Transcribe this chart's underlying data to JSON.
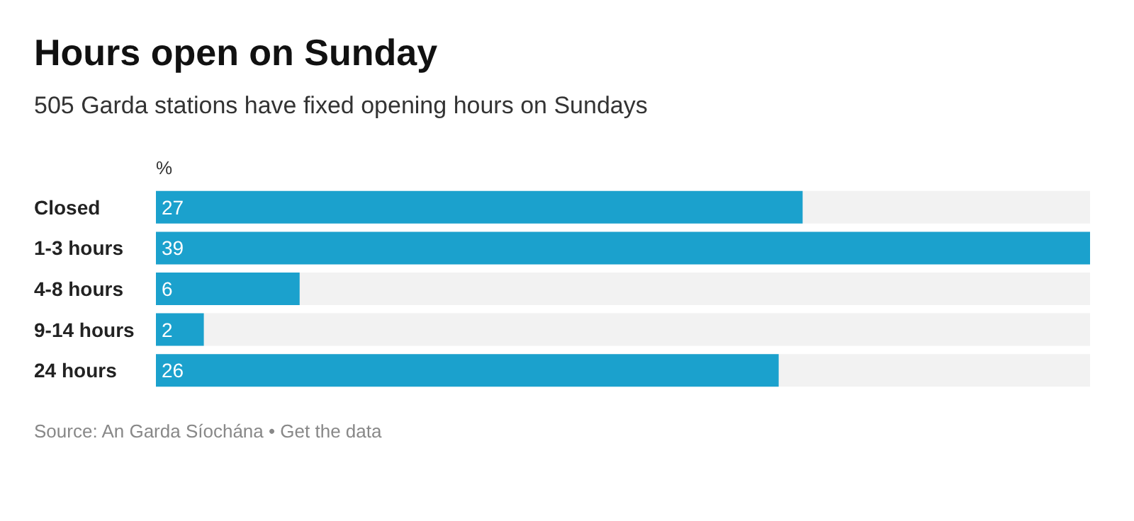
{
  "chart_data": {
    "type": "bar",
    "orientation": "horizontal",
    "title": "Hours open on Sunday",
    "subtitle": "505 Garda stations have fixed opening hours on Sundays",
    "xlabel": "%",
    "categories": [
      "Closed",
      "1-3 hours",
      "4-8 hours",
      "9-14 hours",
      "24 hours"
    ],
    "values": [
      27,
      39,
      6,
      2,
      26
    ],
    "color": "#1ba1cd",
    "data_labels": true,
    "annotations": [
      "Source: An Garda Síochána • Get the data"
    ]
  }
}
